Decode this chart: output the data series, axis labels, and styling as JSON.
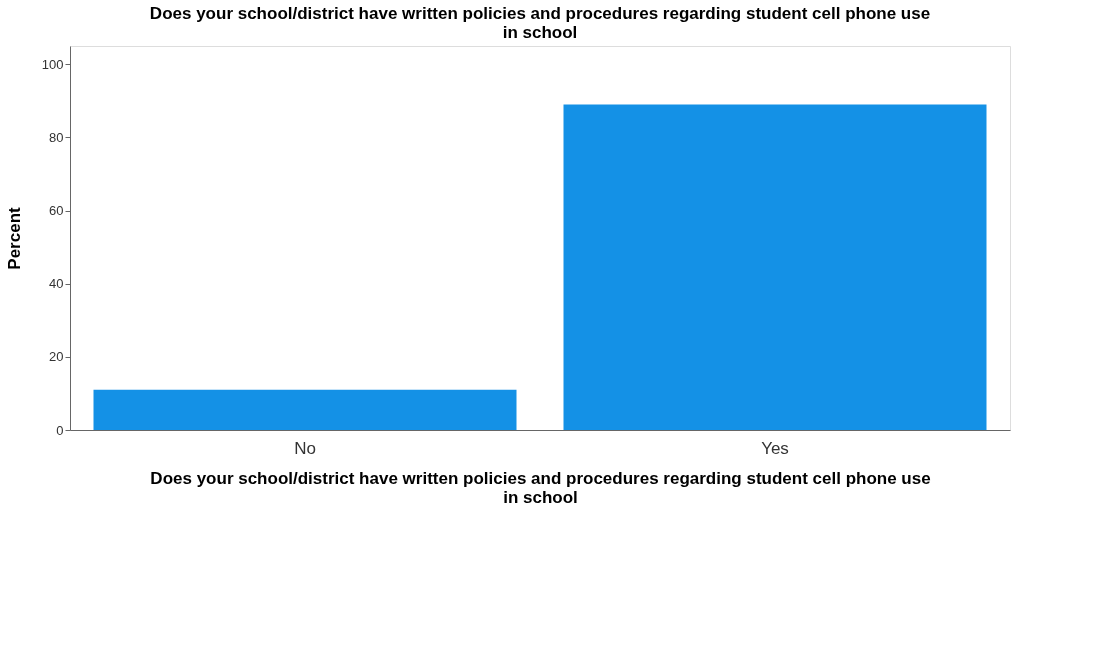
{
  "chart_data": {
    "type": "bar",
    "title": "Does your school/district have written policies and procedures regarding student cell phone use in school",
    "xlabel": "Does your school/district have written policies and procedures regarding student cell phone use in school",
    "ylabel": "Percent",
    "categories": [
      "No",
      "Yes"
    ],
    "values": [
      11,
      89
    ],
    "color": "#1491e6",
    "ylim": [
      0,
      105
    ],
    "yticks": [
      0,
      20,
      40,
      60,
      80,
      100
    ],
    "grid": false
  }
}
